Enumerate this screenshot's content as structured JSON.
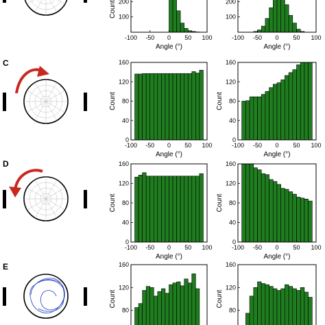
{
  "figure": {
    "panels": [
      {
        "letter": "",
        "diagram": "static"
      },
      {
        "letter": "C",
        "diagram": "rotate-clockwise"
      },
      {
        "letter": "D",
        "diagram": "rotate-counterclockwise"
      },
      {
        "letter": "E",
        "diagram": "trajectories"
      }
    ],
    "colors": {
      "bar_fill": "#1f7d1f",
      "bar_edge": "#000000",
      "arrow": "#c8281e",
      "trajectory": "#2040c0"
    }
  },
  "chart_data": [
    {
      "type": "bar",
      "row": 0,
      "col": 0,
      "xlabel": "Angle (°)",
      "ylabel": "Count",
      "xlim": [
        -100,
        100
      ],
      "ylim": [
        0,
        300
      ],
      "xticks": [
        "-100",
        "-50",
        "0",
        "50",
        "100"
      ],
      "yticks": [
        "100",
        "200"
      ],
      "bins_start": -90,
      "bin_width": 10,
      "values": [
        0,
        0,
        0,
        0,
        0,
        0,
        0,
        0,
        0,
        330,
        260,
        140,
        60,
        25,
        10,
        5,
        2,
        0
      ]
    },
    {
      "type": "bar",
      "row": 0,
      "col": 1,
      "xlabel": "Angle (°)",
      "ylabel": "",
      "xlim": [
        -100,
        100
      ],
      "ylim": [
        0,
        300
      ],
      "xticks": [
        "-100",
        "-50",
        "0",
        "50",
        "100"
      ],
      "yticks": [
        "100",
        "200"
      ],
      "bins_start": -90,
      "bin_width": 10,
      "values": [
        0,
        0,
        0,
        5,
        15,
        40,
        90,
        160,
        240,
        300,
        250,
        180,
        110,
        60,
        20,
        5,
        0,
        0
      ]
    },
    {
      "type": "bar",
      "row": 1,
      "col": 0,
      "xlabel": "Angle (°)",
      "ylabel": "Count",
      "xlim": [
        -100,
        100
      ],
      "ylim": [
        0,
        160
      ],
      "xticks": [
        "-100",
        "-50",
        "0",
        "50",
        "100"
      ],
      "yticks": [
        "0",
        "40",
        "80",
        "120",
        "160"
      ],
      "bins_start": -90,
      "bin_width": 10,
      "values": [
        136,
        136,
        137,
        137,
        137,
        137,
        137,
        137,
        137,
        137,
        137,
        137,
        137,
        137,
        137,
        141,
        138,
        144
      ]
    },
    {
      "type": "bar",
      "row": 1,
      "col": 1,
      "xlabel": "Angle (°)",
      "ylabel": "Count",
      "xlim": [
        -100,
        100
      ],
      "ylim": [
        0,
        160
      ],
      "xticks": [
        "-100",
        "-50",
        "0",
        "50",
        "100"
      ],
      "yticks": [
        "0",
        "40",
        "80",
        "120",
        "160"
      ],
      "bins_start": -90,
      "bin_width": 10,
      "values": [
        80,
        81,
        89,
        89,
        89,
        94,
        100,
        108,
        115,
        118,
        124,
        133,
        139,
        145,
        155,
        160,
        160,
        160
      ]
    },
    {
      "type": "bar",
      "row": 2,
      "col": 0,
      "xlabel": "Angle (°)",
      "ylabel": "Count",
      "xlim": [
        -100,
        100
      ],
      "ylim": [
        0,
        160
      ],
      "xticks": [
        "-100",
        "-50",
        "0",
        "50",
        "100"
      ],
      "yticks": [
        "0",
        "40",
        "80",
        "120",
        "160"
      ],
      "bins_start": -90,
      "bin_width": 10,
      "values": [
        133,
        137,
        142,
        135,
        135,
        135,
        135,
        135,
        135,
        135,
        135,
        135,
        135,
        135,
        135,
        135,
        135,
        140
      ]
    },
    {
      "type": "bar",
      "row": 2,
      "col": 1,
      "xlabel": "Angle (°)",
      "ylabel": "Count",
      "xlim": [
        -100,
        100
      ],
      "ylim": [
        0,
        160
      ],
      "xticks": [
        "-100",
        "-50",
        "0",
        "50",
        "100"
      ],
      "yticks": [
        "0",
        "40",
        "80",
        "120",
        "160"
      ],
      "bins_start": -90,
      "bin_width": 10,
      "values": [
        160,
        160,
        160,
        152,
        148,
        140,
        138,
        128,
        124,
        118,
        110,
        108,
        103,
        98,
        92,
        90,
        88,
        84
      ]
    },
    {
      "type": "bar",
      "row": 3,
      "col": 0,
      "xlabel": "",
      "ylabel": "Count",
      "xlim": [
        -100,
        100
      ],
      "ylim": [
        40,
        160
      ],
      "xticks": [],
      "yticks": [
        "40",
        "80",
        "120",
        "160"
      ],
      "bins_start": -90,
      "bin_width": 10,
      "values": [
        85,
        92,
        115,
        122,
        120,
        105,
        113,
        118,
        110,
        125,
        128,
        130,
        123,
        135,
        128,
        144,
        118,
        50
      ]
    },
    {
      "type": "bar",
      "row": 3,
      "col": 1,
      "xlabel": "",
      "ylabel": "Count",
      "xlim": [
        -100,
        100
      ],
      "ylim": [
        40,
        160
      ],
      "xticks": [],
      "yticks": [
        "40",
        "80",
        "120",
        "160"
      ],
      "bins_start": -90,
      "bin_width": 10,
      "values": [
        48,
        75,
        105,
        120,
        130,
        127,
        125,
        122,
        118,
        115,
        118,
        125,
        122,
        118,
        115,
        120,
        112,
        103
      ]
    }
  ]
}
